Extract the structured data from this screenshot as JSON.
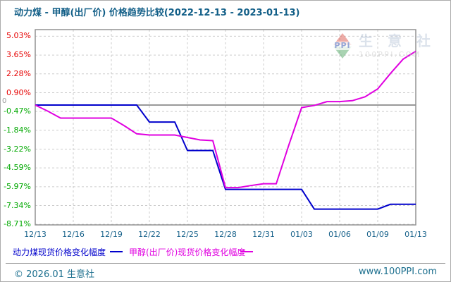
{
  "title": "动力煤 - 甲醇(出厂价) 价格趋势比较(2022-12-13 - 2023-01-13)",
  "chart_data": {
    "type": "line",
    "title": "动力煤 - 甲醇(出厂价) 价格趋势比较(2022-12-13 - 2023-01-13)",
    "xlabel": "",
    "ylabel": "",
    "ylim": [
      -8.76,
      5.51
    ],
    "grid": true,
    "legend_position": "bottom",
    "x_tick_labels": [
      "12/13",
      "12/16",
      "12/19",
      "12/22",
      "12/25",
      "12/28",
      "12/31",
      "01/03",
      "01/06",
      "01/09",
      "01/13"
    ],
    "x_tick_indices": [
      0,
      3,
      6,
      9,
      12,
      15,
      18,
      21,
      24,
      27,
      30
    ],
    "dates": [
      "12/13",
      "12/14",
      "12/15",
      "12/16",
      "12/17",
      "12/18",
      "12/19",
      "12/20",
      "12/21",
      "12/22",
      "12/23",
      "12/24",
      "12/25",
      "12/26",
      "12/27",
      "12/28",
      "12/29",
      "12/30",
      "12/31",
      "01/01",
      "01/02",
      "01/03",
      "01/04",
      "01/05",
      "01/06",
      "01/07",
      "01/08",
      "01/09",
      "01/11",
      "01/12",
      "01/13"
    ],
    "y_ticks": [
      {
        "label": "5.03%",
        "value": 5.03
      },
      {
        "label": "3.65%",
        "value": 3.65
      },
      {
        "label": "2.28%",
        "value": 2.28
      },
      {
        "label": "0.90%",
        "value": 0.9
      },
      {
        "label": "-0.47%",
        "value": -0.47
      },
      {
        "label": "-1.84%",
        "value": -1.84
      },
      {
        "label": "-3.22%",
        "value": -3.22
      },
      {
        "label": "-4.59%",
        "value": -4.59
      },
      {
        "label": "-5.97%",
        "value": -5.97
      },
      {
        "label": "-7.34%",
        "value": -7.34
      },
      {
        "label": "-8.71%",
        "value": -8.71
      }
    ],
    "zero_label": "0",
    "series": [
      {
        "name": "动力煤现货价格变化幅度",
        "color": "#0000cc",
        "values": [
          0,
          0,
          0,
          0,
          0,
          0,
          0,
          0,
          0,
          -1.24,
          -1.24,
          -1.24,
          -3.32,
          -3.32,
          -3.32,
          -6.16,
          -6.16,
          -6.16,
          -6.16,
          -6.16,
          -6.16,
          -6.16,
          -7.6,
          -7.6,
          -7.6,
          -7.6,
          -7.6,
          -7.6,
          -7.25,
          -7.25,
          -7.25
        ]
      },
      {
        "name": "甲醇(出厂价)现货价格变化幅度",
        "color": "#e000e0",
        "values": [
          0,
          -0.45,
          -0.95,
          -0.95,
          -0.95,
          -0.95,
          -0.95,
          -1.5,
          -2.1,
          -2.19,
          -2.19,
          -2.19,
          -2.37,
          -2.55,
          -2.6,
          -6.03,
          -6.03,
          -5.88,
          -5.75,
          -5.75,
          -2.9,
          -0.19,
          -0.03,
          0.25,
          0.25,
          0.32,
          0.6,
          1.18,
          2.3,
          3.35,
          3.93
        ]
      }
    ]
  },
  "colors": {
    "title": "#115e87",
    "axis_label_positive": "#e60000",
    "axis_label_negative": "#00a800",
    "axis_label_zero": "#999999",
    "x_label": "#16618a",
    "grid": "#cccccc",
    "zero_line": "#999999",
    "plot_border": "#929292",
    "footer_text": "#1c6f8e"
  },
  "watermark": {
    "logo_text": "PPI",
    "brand": "生 意 社",
    "domain": "100PPI.COM"
  },
  "footer": {
    "copyright": "© 2026.01 生意社",
    "website": "www.100PPI.com"
  }
}
